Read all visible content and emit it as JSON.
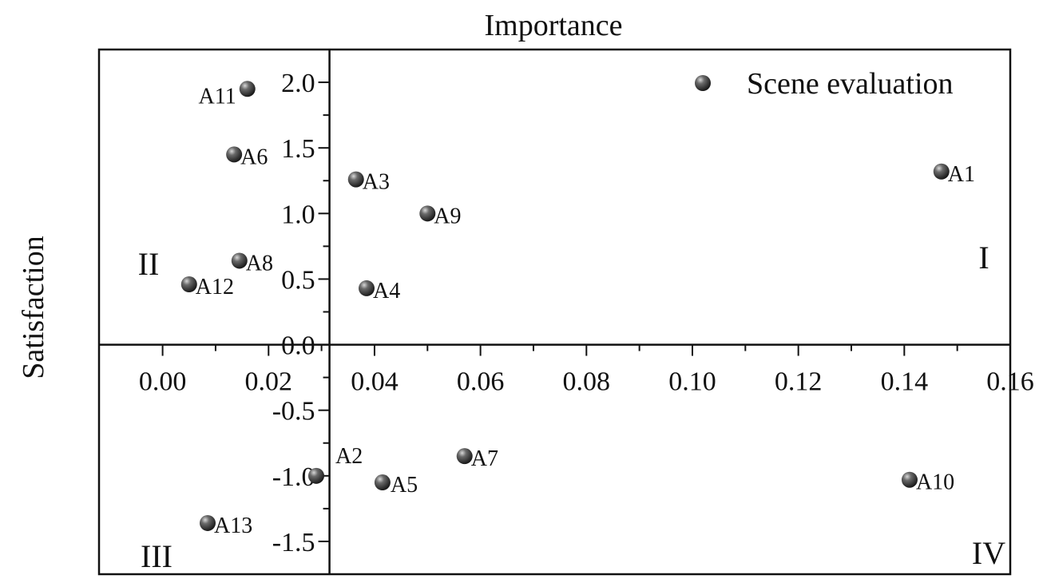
{
  "chart_data": {
    "type": "scatter",
    "title": "",
    "xlabel": "Importance",
    "ylabel": "Satisfaction",
    "xlim": [
      -0.012,
      0.16
    ],
    "ylim": [
      -1.75,
      2.25
    ],
    "x_axis_crosses_y_at": 0,
    "y_axis_crosses_x_at": 0.0315,
    "x_ticks": [
      0.0,
      0.02,
      0.04,
      0.06,
      0.08,
      0.1,
      0.12,
      0.14,
      0.16
    ],
    "x_tick_labels": [
      "0.00",
      "0.02",
      "0.04",
      "0.06",
      "0.08",
      "0.10",
      "0.12",
      "0.14",
      "0.16"
    ],
    "y_ticks": [
      -1.5,
      -1.0,
      -0.5,
      0.0,
      0.5,
      1.0,
      1.5,
      2.0
    ],
    "y_tick_labels": [
      "-1.5",
      "-1.0",
      "-0.5",
      "0.0",
      "0.5",
      "1.0",
      "1.5",
      "2.0"
    ],
    "grid": false,
    "legend": {
      "position": "top-right",
      "entries": [
        "Scene evaluation"
      ]
    },
    "quadrant_labels": {
      "I": "I",
      "II": "II",
      "III": "III",
      "IV": "IV"
    },
    "marker_color": "#3a3a3a",
    "series": [
      {
        "name": "Scene evaluation",
        "points": [
          {
            "label": "A1",
            "x": 0.147,
            "y": 1.32
          },
          {
            "label": "A2",
            "x": 0.029,
            "y": -1.0
          },
          {
            "label": "A3",
            "x": 0.0365,
            "y": 1.26
          },
          {
            "label": "A4",
            "x": 0.0385,
            "y": 0.43
          },
          {
            "label": "A5",
            "x": 0.0415,
            "y": -1.05
          },
          {
            "label": "A6",
            "x": 0.0135,
            "y": 1.45
          },
          {
            "label": "A7",
            "x": 0.057,
            "y": -0.85
          },
          {
            "label": "A8",
            "x": 0.0145,
            "y": 0.64
          },
          {
            "label": "A9",
            "x": 0.05,
            "y": 1.0
          },
          {
            "label": "A10",
            "x": 0.141,
            "y": -1.03
          },
          {
            "label": "A11",
            "x": 0.016,
            "y": 1.95
          },
          {
            "label": "A12",
            "x": 0.005,
            "y": 0.46
          },
          {
            "label": "A13",
            "x": 0.0085,
            "y": -1.36
          }
        ]
      }
    ]
  }
}
